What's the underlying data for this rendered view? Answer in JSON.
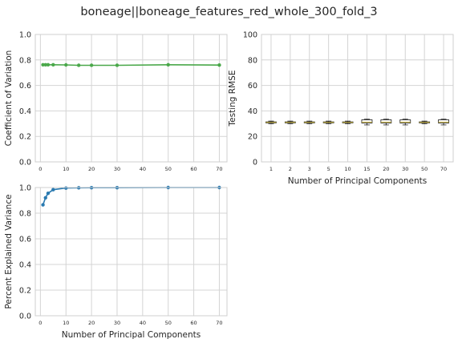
{
  "figure": {
    "title": "boneage||boneage_features_red_whole_300_fold_3"
  },
  "colors": {
    "cv_line": "#4aa84a",
    "pev_line": "#2a7ab0",
    "grid": "#d4d4d4",
    "spine": "#cfcfcf",
    "median": "#c8b23a",
    "box": "#1a1a1a"
  },
  "chart_data": [
    {
      "id": "cv",
      "type": "line",
      "title": "",
      "xlabel": "",
      "ylabel": "Coefficient of Variation",
      "xlim": [
        -2,
        73
      ],
      "ylim": [
        0,
        1
      ],
      "xticks": [
        0,
        10,
        20,
        30,
        40,
        50,
        60,
        70
      ],
      "yticks": [
        0.0,
        0.2,
        0.4,
        0.6,
        0.8,
        1.0
      ],
      "yticklabels": [
        "0.0",
        "0.2",
        "0.4",
        "0.6",
        "0.8",
        "1.0"
      ],
      "grid": true,
      "x": [
        1,
        2,
        3,
        5,
        10,
        15,
        20,
        30,
        50,
        70
      ],
      "y": [
        0.762,
        0.762,
        0.762,
        0.762,
        0.761,
        0.758,
        0.758,
        0.758,
        0.762,
        0.76
      ]
    },
    {
      "id": "rmse",
      "type": "box",
      "title": "",
      "xlabel": "Number of Principal Components",
      "ylabel": "Testing RMSE",
      "ylim": [
        0,
        100
      ],
      "yticks": [
        0,
        20,
        40,
        60,
        80,
        100
      ],
      "yticklabels": [
        "0",
        "20",
        "40",
        "60",
        "80",
        "100"
      ],
      "grid": true,
      "categories": [
        "1",
        "2",
        "3",
        "5",
        "10",
        "15",
        "20",
        "30",
        "50",
        "70"
      ],
      "boxes": [
        {
          "min": 30.0,
          "q1": 30.6,
          "median": 31.0,
          "q3": 31.4,
          "max": 32.0
        },
        {
          "min": 30.0,
          "q1": 30.6,
          "median": 31.0,
          "q3": 31.4,
          "max": 32.0
        },
        {
          "min": 30.0,
          "q1": 30.6,
          "median": 31.0,
          "q3": 31.4,
          "max": 32.0
        },
        {
          "min": 30.0,
          "q1": 30.6,
          "median": 31.0,
          "q3": 31.4,
          "max": 32.0
        },
        {
          "min": 30.0,
          "q1": 30.6,
          "median": 31.0,
          "q3": 31.4,
          "max": 32.0
        },
        {
          "min": 29.0,
          "q1": 30.5,
          "median": 31.2,
          "q3": 33.0,
          "max": 33.5
        },
        {
          "min": 29.0,
          "q1": 30.5,
          "median": 31.2,
          "q3": 33.0,
          "max": 33.5
        },
        {
          "min": 29.0,
          "q1": 30.5,
          "median": 31.2,
          "q3": 33.0,
          "max": 33.5
        },
        {
          "min": 30.0,
          "q1": 30.6,
          "median": 31.0,
          "q3": 31.4,
          "max": 32.0
        },
        {
          "min": 29.0,
          "q1": 30.5,
          "median": 31.2,
          "q3": 33.0,
          "max": 33.5
        }
      ]
    },
    {
      "id": "pev",
      "type": "line",
      "title": "",
      "xlabel": "Number of Principal Components",
      "ylabel": "Percent Explained Variance",
      "xlim": [
        -2,
        73
      ],
      "ylim": [
        0,
        1
      ],
      "xticks": [
        0,
        10,
        20,
        30,
        40,
        50,
        60,
        70
      ],
      "yticks": [
        0.0,
        0.2,
        0.4,
        0.6,
        0.8,
        1.0
      ],
      "yticklabels": [
        "0.0",
        "0.2",
        "0.4",
        "0.6",
        "0.8",
        "1.0"
      ],
      "grid": true,
      "x": [
        1,
        2,
        3,
        5,
        10,
        15,
        20,
        30,
        50,
        70
      ],
      "y": [
        0.865,
        0.92,
        0.955,
        0.983,
        0.996,
        0.998,
        0.999,
        0.999,
        1.0,
        1.0
      ]
    }
  ]
}
